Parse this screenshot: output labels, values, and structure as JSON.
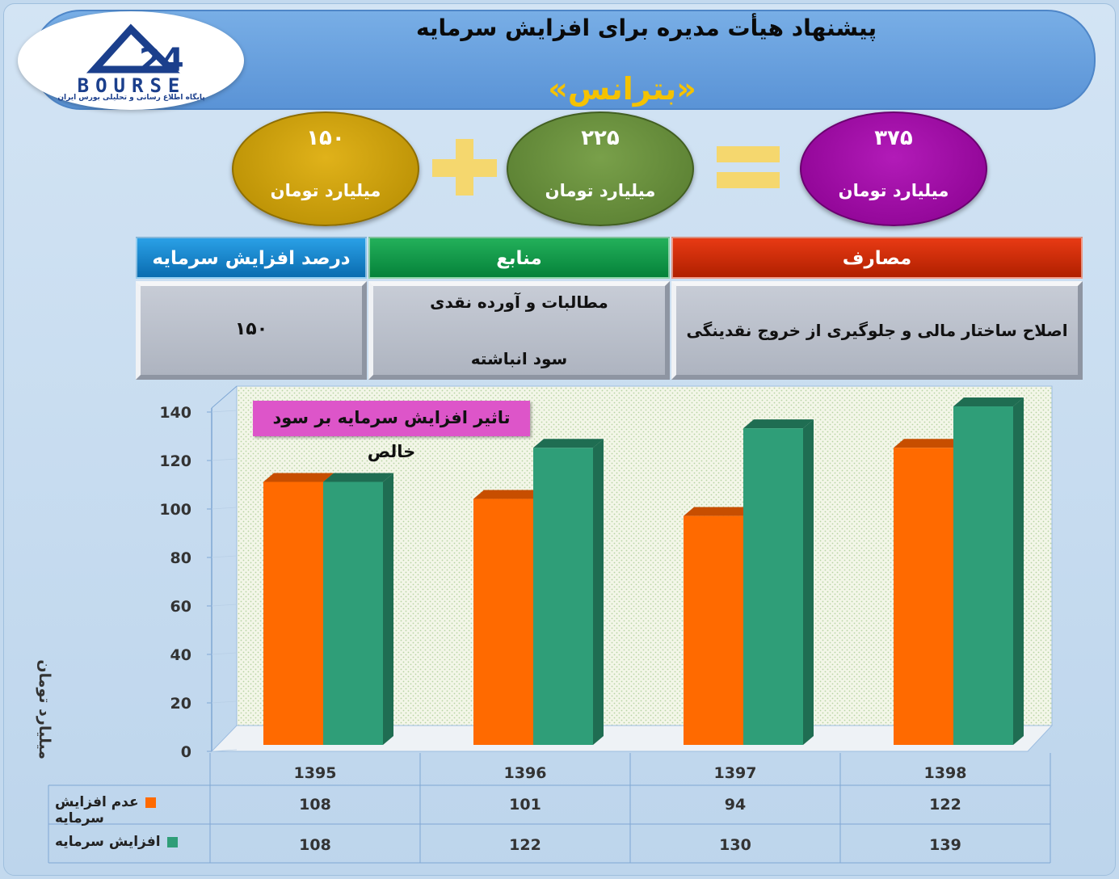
{
  "header": {
    "title": "پیشنهاد هیأت مدیره برای افزایش سرمایه",
    "company": "«بترانس»"
  },
  "logo": {
    "brand": "BOURSE",
    "number": "24",
    "tagline": "پایگاه اطلاع رسانی و تحلیلی بورس ایران"
  },
  "equation": {
    "left": {
      "value": "۱۵۰",
      "unit": "میلیارد تومان"
    },
    "middle": {
      "value": "۲۲۵",
      "unit": "میلیارد تومان"
    },
    "result": {
      "value": "۳۷۵",
      "unit": "میلیارد تومان"
    },
    "colors": {
      "left": "#c9a00e",
      "middle": "#6a8f3c",
      "result": "#9c0aa3",
      "operators": "#f5d76e"
    }
  },
  "table": {
    "headers": {
      "percent": "درصد افزایش سرمایه",
      "sources": "منابع",
      "uses": "مصارف"
    },
    "percent_value": "۱۵۰",
    "sources": [
      "مطالبات و آورده نقدی",
      "سود انباشته"
    ],
    "uses": "اصلاح ساختار مالی و جلوگیری از خروج نقدینگی"
  },
  "chart_data": {
    "type": "bar",
    "title": "تاثیر افزایش سرمایه بر سود خالص",
    "ylabel": "میلیارد تومان",
    "categories": [
      "1395",
      "1396",
      "1397",
      "1398"
    ],
    "ylim": [
      0,
      140
    ],
    "yticks": [
      0,
      20,
      40,
      60,
      80,
      100,
      120,
      140
    ],
    "series": [
      {
        "name": "عدم افزایش سرمایه",
        "values": [
          108,
          101,
          94,
          122
        ],
        "color": "#ff6a00"
      },
      {
        "name": "افزایش سرمایه",
        "values": [
          108,
          122,
          130,
          139
        ],
        "color": "#2f9e78"
      }
    ],
    "grid": false,
    "legend": "data-table-bottom"
  }
}
